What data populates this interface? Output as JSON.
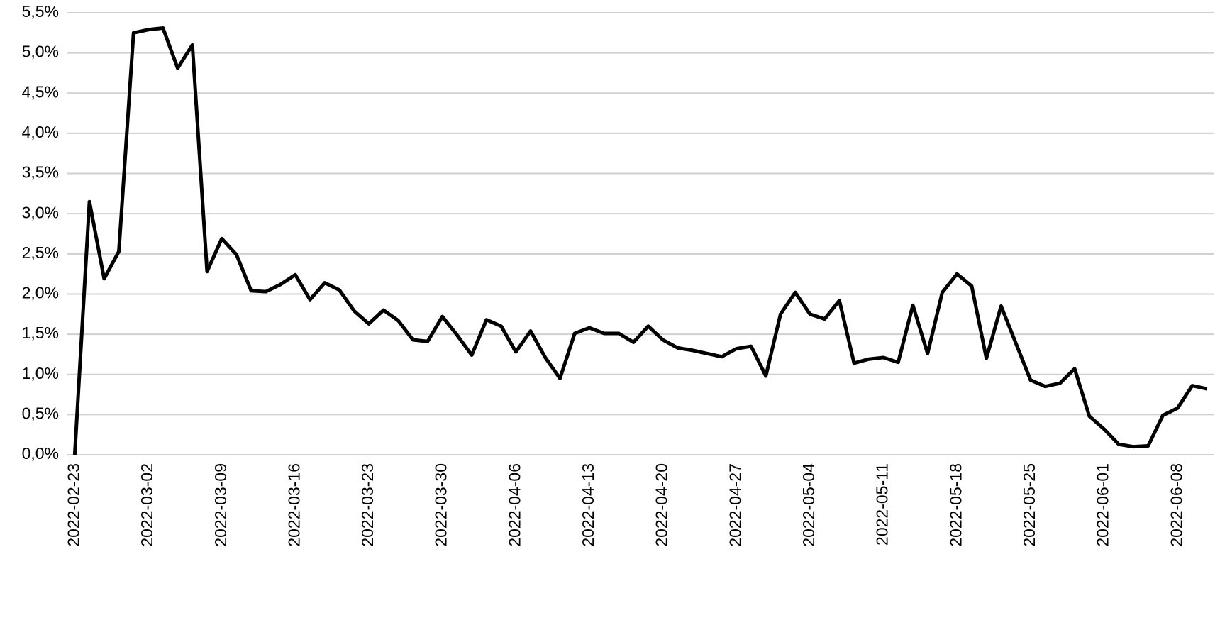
{
  "chart_data": {
    "type": "line",
    "categories": [
      "2022-02-23",
      null,
      null,
      null,
      null,
      "2022-03-02",
      null,
      null,
      null,
      null,
      "2022-03-09",
      null,
      null,
      null,
      null,
      "2022-03-16",
      null,
      null,
      null,
      null,
      "2022-03-23",
      null,
      null,
      null,
      null,
      "2022-03-30",
      null,
      null,
      null,
      null,
      "2022-04-06",
      null,
      null,
      null,
      null,
      "2022-04-13",
      null,
      null,
      null,
      null,
      "2022-04-20",
      null,
      null,
      null,
      null,
      "2022-04-27",
      null,
      null,
      null,
      null,
      "2022-05-04",
      null,
      null,
      null,
      null,
      "2022-05-11",
      null,
      null,
      null,
      null,
      "2022-05-18",
      null,
      null,
      null,
      null,
      "2022-05-25",
      null,
      null,
      null,
      null,
      "2022-06-01",
      null,
      null,
      null,
      null,
      "2022-06-08",
      null,
      null
    ],
    "values": [
      0,
      3.15,
      2.19,
      2.53,
      5.25,
      5.29,
      5.31,
      4.81,
      5.1,
      2.28,
      2.69,
      2.49,
      2.04,
      2.03,
      2.12,
      2.24,
      1.93,
      2.14,
      2.05,
      1.79,
      1.63,
      1.8,
      1.67,
      1.43,
      1.41,
      1.72,
      1.49,
      1.24,
      1.68,
      1.6,
      1.28,
      1.54,
      1.21,
      0.95,
      1.51,
      1.58,
      1.51,
      1.51,
      1.4,
      1.6,
      1.43,
      1.33,
      1.3,
      1.26,
      1.22,
      1.32,
      1.35,
      0.98,
      1.75,
      2.02,
      1.75,
      1.69,
      1.92,
      1.14,
      1.19,
      1.21,
      1.15,
      1.86,
      1.26,
      2.02,
      2.25,
      2.1,
      1.2,
      1.85,
      1.39,
      0.93,
      0.85,
      0.89,
      1.07,
      0.48,
      0.32,
      0.13,
      0.1,
      0.11,
      0.49,
      0.58,
      0.86,
      0.82
    ],
    "color": "#000000",
    "ylim": [
      0,
      5.5
    ],
    "yticks": [
      {
        "value": 0,
        "label": "0,0%"
      },
      {
        "value": 0.5,
        "label": "0,5%"
      },
      {
        "value": 1,
        "label": "1,0%"
      },
      {
        "value": 1.5,
        "label": "1,5%"
      },
      {
        "value": 2,
        "label": "2,0%"
      },
      {
        "value": 2.5,
        "label": "2,5%"
      },
      {
        "value": 3,
        "label": "3,0%"
      },
      {
        "value": 3.5,
        "label": "3,5%"
      },
      {
        "value": 4,
        "label": "4,0%"
      },
      {
        "value": 4.5,
        "label": "4,5%"
      },
      {
        "value": 5,
        "label": "5,0%"
      },
      {
        "value": 5.5,
        "label": "5,5%"
      }
    ],
    "grid": true
  }
}
